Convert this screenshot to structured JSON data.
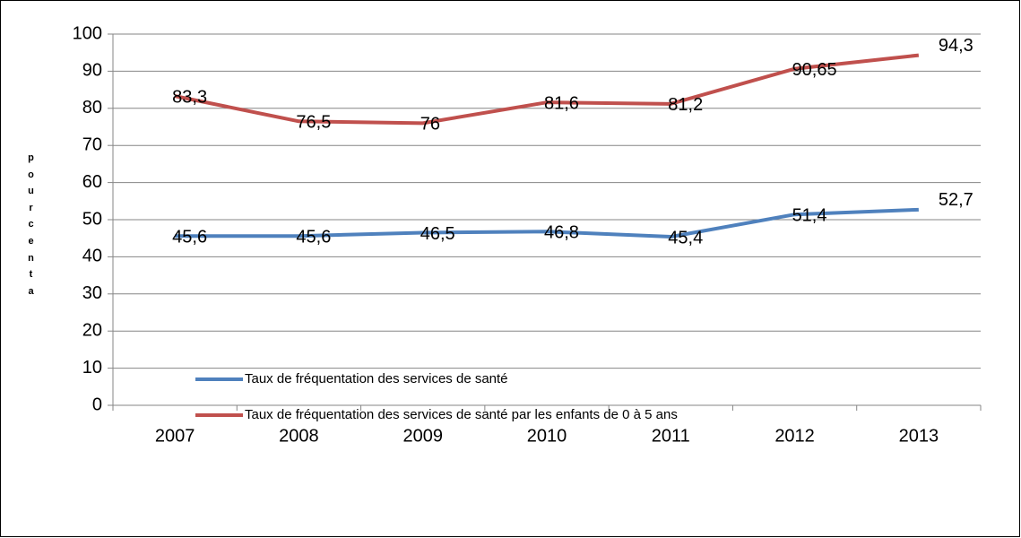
{
  "chart_data": {
    "type": "line",
    "y_label": "pourcenta",
    "categories": [
      "2007",
      "2008",
      "2009",
      "2010",
      "2011",
      "2012",
      "2013"
    ],
    "series": [
      {
        "name": "Taux de fréquentation des services de santé",
        "color": "#4f81bd",
        "values": [
          45.6,
          45.6,
          46.5,
          46.8,
          45.4,
          51.4,
          52.7
        ],
        "value_labels": [
          "45,6",
          "45,6",
          "46,5",
          "46,8",
          "45,4",
          "51,4",
          "52,7"
        ]
      },
      {
        "name": "Taux de fréquentation des services de santé par les enfants de 0 à 5 ans",
        "color": "#c0504d",
        "values": [
          83.3,
          76.5,
          76,
          81.6,
          81.2,
          90.65,
          94.3
        ],
        "value_labels": [
          "83,3",
          "76,5",
          "76",
          "81,6",
          "81,2",
          "90,65",
          "94,3"
        ]
      }
    ],
    "ylim": [
      0,
      100
    ],
    "yticks": [
      0,
      10,
      20,
      30,
      40,
      50,
      60,
      70,
      80,
      90,
      100
    ],
    "grid": true,
    "legend": "bottom"
  }
}
